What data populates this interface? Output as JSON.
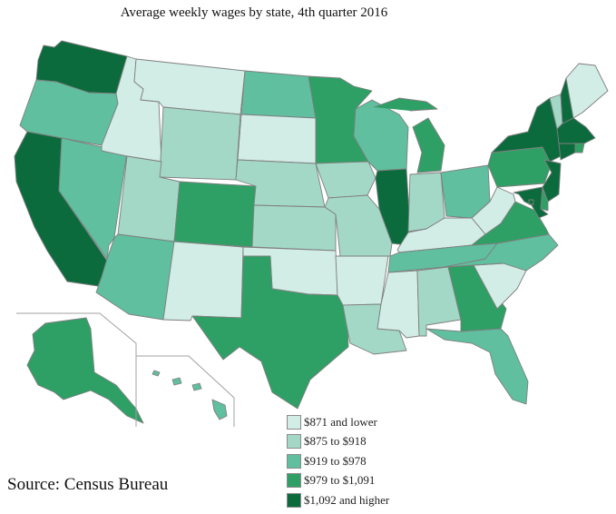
{
  "title": "Average weekly wages by state, 4th quarter 2016",
  "source": "Source: Census Bureau",
  "colors": {
    "c1": "#d2ece6",
    "c2": "#a4d8c6",
    "c3": "#5fbf9e",
    "c4": "#2ea065",
    "c5": "#0c6b3d",
    "border": "#7f7f7f",
    "inset_line": "#a0a0a0"
  },
  "legend": [
    {
      "label": "$871 and lower",
      "class": "c1"
    },
    {
      "label": "$875 to $918",
      "class": "c2"
    },
    {
      "label": "$919 to $978",
      "class": "c3"
    },
    {
      "label": "$979 to $1,091",
      "class": "c4"
    },
    {
      "label": "$1,092 and higher",
      "class": "c5"
    }
  ],
  "states": {
    "WA": "c5",
    "OR": "c3",
    "CA": "c5",
    "NV": "c3",
    "ID": "c1",
    "MT": "c1",
    "WY": "c2",
    "UT": "c2",
    "AZ": "c3",
    "CO": "c4",
    "NM": "c1",
    "ND": "c3",
    "SD": "c1",
    "NE": "c2",
    "KS": "c2",
    "OK": "c1",
    "TX": "c4",
    "MN": "c4",
    "IA": "c2",
    "MO": "c2",
    "AR": "c1",
    "LA": "c2",
    "WI": "c3",
    "IL": "c5",
    "MI": "c4",
    "IN": "c2",
    "OH": "c3",
    "KY": "c1",
    "TN": "c3",
    "MS": "c1",
    "AL": "c2",
    "GA": "c4",
    "FL": "c3",
    "SC": "c1",
    "NC": "c3",
    "VA": "c4",
    "WV": "c1",
    "PA": "c4",
    "NY": "c5",
    "VT": "c2",
    "NH": "c5",
    "ME": "c1",
    "MA": "c5",
    "RI": "c4",
    "CT": "c5",
    "NJ": "c5",
    "DE": "c4",
    "MD": "c5",
    "DC": "c5",
    "AK": "c4",
    "HI": "c3"
  }
}
